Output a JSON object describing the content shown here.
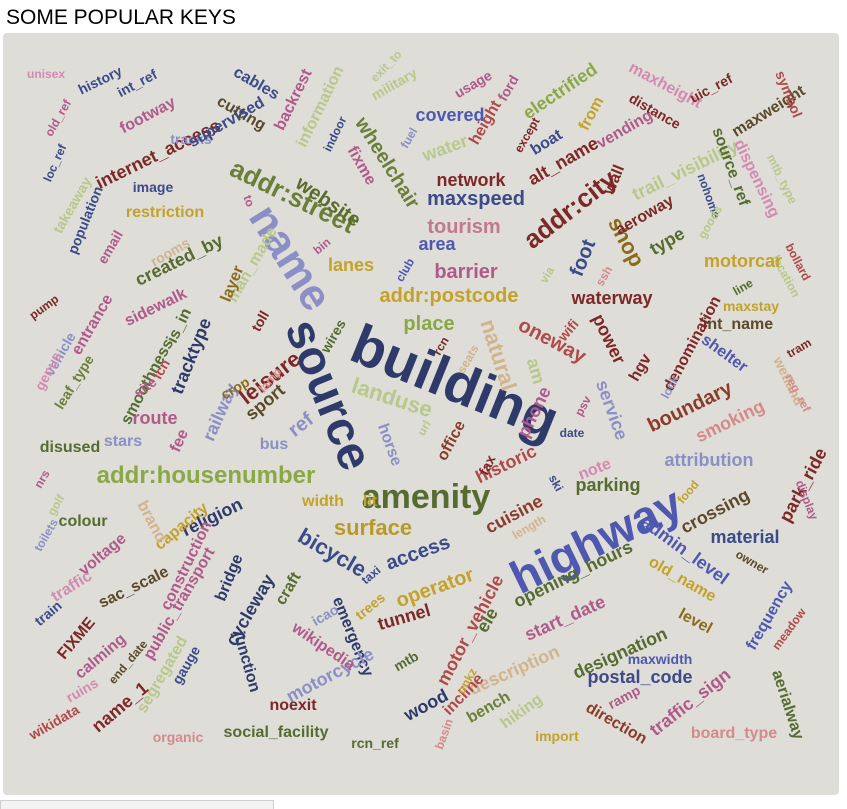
{
  "header": {
    "title": "SOME POPULAR KEYS"
  },
  "words": [
    {
      "t": "building",
      "c": "#2e3a6a"
    },
    {
      "t": "source",
      "c": "#2e3a6a"
    },
    {
      "t": "highway",
      "c": "#4f58b0"
    },
    {
      "t": "name",
      "c": "#8b8fc6"
    },
    {
      "t": "amenity",
      "c": "#556b2f"
    },
    {
      "t": "addr:housenumber",
      "c": "#8aa845"
    },
    {
      "t": "addr:street",
      "c": "#6b7f3a"
    },
    {
      "t": "addr:postcode",
      "c": "#c4a22a"
    },
    {
      "t": "addr:city",
      "c": "#7d2727"
    },
    {
      "t": "landuse",
      "c": "#b8c88a"
    },
    {
      "t": "surface",
      "c": "#b89a2a"
    },
    {
      "t": "natural",
      "c": "#d2b48c"
    },
    {
      "t": "maxspeed",
      "c": "#3b4a8a"
    },
    {
      "t": "shop",
      "c": "#8b6b1a"
    },
    {
      "t": "website",
      "c": "#5b6b2a"
    },
    {
      "t": "leisure",
      "c": "#7d2727"
    },
    {
      "t": "oneway",
      "c": "#b04a4a"
    },
    {
      "t": "barrier",
      "c": "#b05a8a"
    },
    {
      "t": "tourism",
      "c": "#c07a8a"
    },
    {
      "t": "bicycle",
      "c": "#3b4a8a"
    },
    {
      "t": "access",
      "c": "#3b4a8a"
    },
    {
      "t": "operator",
      "c": "#c4a22a"
    },
    {
      "t": "tunnel",
      "c": "#7d2727"
    },
    {
      "t": "waterway",
      "c": "#7d2727"
    },
    {
      "t": "place",
      "c": "#8aa845"
    },
    {
      "t": "lanes",
      "c": "#c4a22a"
    },
    {
      "t": "area",
      "c": "#4f58b0"
    },
    {
      "t": "foot",
      "c": "#3b4a8a"
    },
    {
      "t": "network",
      "c": "#7d2727"
    },
    {
      "t": "covered",
      "c": "#4f58b0"
    },
    {
      "t": "water",
      "c": "#b8c88a"
    },
    {
      "t": "wheelchair",
      "c": "#6b7f3a"
    },
    {
      "t": "cuisine",
      "c": "#8b3b2a"
    },
    {
      "t": "historic",
      "c": "#b04a4a"
    },
    {
      "t": "note",
      "c": "#d48ab0"
    },
    {
      "t": "parking",
      "c": "#556b2f"
    },
    {
      "t": "phone",
      "c": "#b05a8a"
    },
    {
      "t": "office",
      "c": "#8b3b2a"
    },
    {
      "t": "horse",
      "c": "#8b8fc6"
    },
    {
      "t": "sport",
      "c": "#5b4a2a"
    },
    {
      "t": "ref",
      "c": "#8b8fc6"
    },
    {
      "t": "railway",
      "c": "#8b8fc6"
    },
    {
      "t": "route",
      "c": "#b05a8a"
    },
    {
      "t": "tracktype",
      "c": "#2e3a6a"
    },
    {
      "t": "smoothness",
      "c": "#556b2f"
    },
    {
      "t": "religion",
      "c": "#2e3a6a"
    },
    {
      "t": "bridge",
      "c": "#2e3a6a"
    },
    {
      "t": "width",
      "c": "#c4a22a"
    },
    {
      "t": "lit",
      "c": "#c4a22a"
    },
    {
      "t": "crossing",
      "c": "#5b4a2a"
    },
    {
      "t": "boundary",
      "c": "#8b3b2a"
    },
    {
      "t": "smoking",
      "c": "#d48a8a"
    },
    {
      "t": "attribution",
      "c": "#8b8fc6"
    },
    {
      "t": "material",
      "c": "#3b4a8a"
    },
    {
      "t": "admin_level",
      "c": "#4f58b0"
    },
    {
      "t": "opening_hours",
      "c": "#556b2f"
    },
    {
      "t": "start_date",
      "c": "#b05a8a"
    },
    {
      "t": "old_name",
      "c": "#c4a22a"
    },
    {
      "t": "frequency",
      "c": "#4f58b0"
    },
    {
      "t": "level",
      "c": "#8b6b1a"
    },
    {
      "t": "designation",
      "c": "#556b2f"
    },
    {
      "t": "maxwidth",
      "c": "#4f58b0"
    },
    {
      "t": "postal_code",
      "c": "#3b4a8a"
    },
    {
      "t": "traffic_sign",
      "c": "#b05a8a"
    },
    {
      "t": "aerialway",
      "c": "#556b2f"
    },
    {
      "t": "board_type",
      "c": "#d48a8a"
    },
    {
      "t": "direction",
      "c": "#8b3b2a"
    },
    {
      "t": "ramp",
      "c": "#b05a8a"
    },
    {
      "t": "import",
      "c": "#c4a22a"
    },
    {
      "t": "hiking",
      "c": "#b8c88a"
    },
    {
      "t": "bench",
      "c": "#6b7f3a"
    },
    {
      "t": "description",
      "c": "#d2b48c"
    },
    {
      "t": "incline",
      "c": "#b04a4a"
    },
    {
      "t": "ele",
      "c": "#556b2f"
    },
    {
      "t": "motor_vehicle",
      "c": "#b04a4a"
    },
    {
      "t": "emergency",
      "c": "#2e3a6a"
    },
    {
      "t": "motorcycle",
      "c": "#8b8fc6"
    },
    {
      "t": "wikipedia",
      "c": "#b05a8a"
    },
    {
      "t": "junction",
      "c": "#2e3a6a"
    },
    {
      "t": "cycleway",
      "c": "#2e3a6a"
    },
    {
      "t": "craft",
      "c": "#556b2f"
    },
    {
      "t": "public_transport",
      "c": "#b05a8a"
    },
    {
      "t": "construction",
      "c": "#b05a8a"
    },
    {
      "t": "capacity",
      "c": "#c4a22a"
    },
    {
      "t": "brand",
      "c": "#d2b48c"
    },
    {
      "t": "sac_scale",
      "c": "#5b4a2a"
    },
    {
      "t": "voltage",
      "c": "#b05a8a"
    },
    {
      "t": "colour",
      "c": "#556b2f"
    },
    {
      "t": "disused",
      "c": "#556b2f"
    },
    {
      "t": "stars",
      "c": "#8b8fc6"
    },
    {
      "t": "fee",
      "c": "#b05a8a"
    },
    {
      "t": "bus",
      "c": "#8b8fc6"
    },
    {
      "t": "leaf_type",
      "c": "#6b7f3a"
    },
    {
      "t": "vehicle",
      "c": "#8b8fc6"
    },
    {
      "t": "entrance",
      "c": "#b05a8a"
    },
    {
      "t": "email",
      "c": "#b05a8a"
    },
    {
      "t": "population",
      "c": "#3b4a8a"
    },
    {
      "t": "takeaway",
      "c": "#b8c88a"
    },
    {
      "t": "loc_ref",
      "c": "#3b4a8a"
    },
    {
      "t": "old_ref",
      "c": "#b05a8a"
    },
    {
      "t": "unisex",
      "c": "#d48ab0"
    },
    {
      "t": "history",
      "c": "#3b4a8a"
    },
    {
      "t": "int_ref",
      "c": "#3b4a8a"
    },
    {
      "t": "footway",
      "c": "#b05a8a"
    },
    {
      "t": "internet_access",
      "c": "#7d2727"
    },
    {
      "t": "tracks",
      "c": "#8b8fc6"
    },
    {
      "t": "image",
      "c": "#3b4a8a"
    },
    {
      "t": "restriction",
      "c": "#c4a22a"
    },
    {
      "t": "rooms",
      "c": "#d2b48c"
    },
    {
      "t": "created_by",
      "c": "#556b2f"
    },
    {
      "t": "man_made",
      "c": "#b8c88a"
    },
    {
      "t": "layer",
      "c": "#8b6b1a"
    },
    {
      "t": "sidewalk",
      "c": "#b05a8a"
    },
    {
      "t": "is_in",
      "c": "#556b2f"
    },
    {
      "t": "cables",
      "c": "#3b4a8a"
    },
    {
      "t": "cutting",
      "c": "#5b4a2a"
    },
    {
      "t": "supervised",
      "c": "#3b4a8a"
    },
    {
      "t": "backrest",
      "c": "#b05a8a"
    },
    {
      "t": "information",
      "c": "#b8c88a"
    },
    {
      "t": "indoor",
      "c": "#3b4a8a"
    },
    {
      "t": "military",
      "c": "#b8c88a"
    },
    {
      "t": "exit_to",
      "c": "#b8c88a"
    },
    {
      "t": "fixme",
      "c": "#b05a8a"
    },
    {
      "t": "fuel",
      "c": "#8b8fc6"
    },
    {
      "t": "usage",
      "c": "#b05a8a"
    },
    {
      "t": "ford",
      "c": "#b05a8a"
    },
    {
      "t": "height",
      "c": "#b04a4a"
    },
    {
      "t": "boat",
      "c": "#3b4a8a"
    },
    {
      "t": "except",
      "c": "#7d2727"
    },
    {
      "t": "electrified",
      "c": "#8aa845"
    },
    {
      "t": "alt_name",
      "c": "#7d2727"
    },
    {
      "t": "wall",
      "c": "#7d2727"
    },
    {
      "t": "from",
      "c": "#c4a22a"
    },
    {
      "t": "vending",
      "c": "#b05a8a"
    },
    {
      "t": "maxheight",
      "c": "#d48ab0"
    },
    {
      "t": "distance",
      "c": "#7d2727"
    },
    {
      "t": "uic_ref",
      "c": "#7d2727"
    },
    {
      "t": "maxweight",
      "c": "#5b4a2a"
    },
    {
      "t": "symbol",
      "c": "#b04a4a"
    },
    {
      "t": "trail_visibility",
      "c": "#b8c88a"
    },
    {
      "t": "source_ref",
      "c": "#556b2f"
    },
    {
      "t": "dispensing",
      "c": "#d48ab0"
    },
    {
      "t": "mtb_type",
      "c": "#b8c88a"
    },
    {
      "t": "aeroway",
      "c": "#7d2727"
    },
    {
      "t": "nohome",
      "c": "#3b4a8a"
    },
    {
      "t": "bollard",
      "c": "#b04a4a"
    },
    {
      "t": "type",
      "c": "#556b2f"
    },
    {
      "t": "goods",
      "c": "#b8c88a"
    },
    {
      "t": "location",
      "c": "#b8c88a"
    },
    {
      "t": "motorcar",
      "c": "#c4a22a"
    },
    {
      "t": "line",
      "c": "#556b2f"
    },
    {
      "t": "maxstay",
      "c": "#c4a22a"
    },
    {
      "t": "int_name",
      "c": "#5b4a2a"
    },
    {
      "t": "denomination",
      "c": "#7d2727"
    },
    {
      "t": "shelter",
      "c": "#4f58b0"
    },
    {
      "t": "tram",
      "c": "#7d2727"
    },
    {
      "t": "wetland",
      "c": "#d2b48c"
    },
    {
      "t": "reg_ref",
      "c": "#d48a8a"
    },
    {
      "t": "park_ride",
      "c": "#7d2727"
    },
    {
      "t": "display",
      "c": "#b05a8a"
    },
    {
      "t": "food",
      "c": "#c4a22a"
    },
    {
      "t": "lock",
      "c": "#8b8fc6"
    },
    {
      "t": "hgv",
      "c": "#7d2727"
    },
    {
      "t": "power",
      "c": "#7d2727"
    },
    {
      "t": "wifi",
      "c": "#b04a4a"
    },
    {
      "t": "am",
      "c": "#b8c88a"
    },
    {
      "t": "service",
      "c": "#8b8fc6"
    },
    {
      "t": "psv",
      "c": "#b05a8a"
    },
    {
      "t": "date",
      "c": "#3b4a8a"
    },
    {
      "t": "fax",
      "c": "#7d2727"
    },
    {
      "t": "url",
      "c": "#b8c88a"
    },
    {
      "t": "length",
      "c": "#d2b48c"
    },
    {
      "t": "ski",
      "c": "#3b4a8a"
    },
    {
      "t": "bin",
      "c": "#b05a8a"
    },
    {
      "t": "club",
      "c": "#4f58b0"
    },
    {
      "t": "via",
      "c": "#b8c88a"
    },
    {
      "t": "ssh",
      "c": "#d48a8a"
    },
    {
      "t": "to",
      "c": "#b05a8a"
    },
    {
      "t": "toll",
      "c": "#7d2727"
    },
    {
      "t": "wires",
      "c": "#556b2f"
    },
    {
      "t": "rcn",
      "c": "#7d2727"
    },
    {
      "t": "seats",
      "c": "#d2b48c"
    },
    {
      "t": "site",
      "c": "#b05a8a"
    },
    {
      "t": "lcn",
      "c": "#b04a4a"
    },
    {
      "t": "crop",
      "c": "#8b6b1a"
    },
    {
      "t": "lamp",
      "c": "#d48a8a"
    },
    {
      "t": "genus",
      "c": "#d48ab0"
    },
    {
      "t": "pump",
      "c": "#7d2727"
    },
    {
      "t": "nrs",
      "c": "#b05a8a"
    },
    {
      "t": "golf",
      "c": "#b8c88a"
    },
    {
      "t": "toilets",
      "c": "#8b8fc6"
    },
    {
      "t": "traffic",
      "c": "#d48ab0"
    },
    {
      "t": "train",
      "c": "#3b4a8a"
    },
    {
      "t": "FIXME",
      "c": "#7d2727"
    },
    {
      "t": "calming",
      "c": "#b05a8a"
    },
    {
      "t": "ruins",
      "c": "#d48ab0"
    },
    {
      "t": "wikidata",
      "c": "#b04a4a"
    },
    {
      "t": "name_1",
      "c": "#7d2727"
    },
    {
      "t": "end_date",
      "c": "#5b4a2a"
    },
    {
      "t": "segregated",
      "c": "#b8c88a"
    },
    {
      "t": "gauge",
      "c": "#3b4a8a"
    },
    {
      "t": "organic",
      "c": "#d48a8a"
    },
    {
      "t": "social_facility",
      "c": "#556b2f"
    },
    {
      "t": "rcn_ref",
      "c": "#556b2f"
    },
    {
      "t": "noexit",
      "c": "#7d2727"
    },
    {
      "t": "wood",
      "c": "#2e3a6a"
    },
    {
      "t": "basin",
      "c": "#d48a8a"
    },
    {
      "t": "mtb",
      "c": "#556b2f"
    },
    {
      "t": "onkz",
      "c": "#c4a22a"
    },
    {
      "t": "icao",
      "c": "#8b8fc6"
    },
    {
      "t": "trees",
      "c": "#c4a22a"
    },
    {
      "t": "taxi",
      "c": "#3b4a8a"
    },
    {
      "t": "owner",
      "c": "#5b4a2a"
    },
    {
      "t": "meadow",
      "c": "#b04a4a"
    }
  ]
}
